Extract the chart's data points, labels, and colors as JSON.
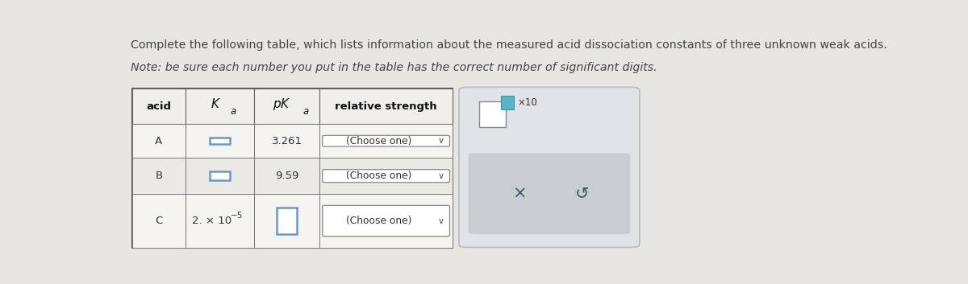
{
  "title_line1": "Complete the following table, which lists information about the measured acid dissociation constants of three unknown weak acids.",
  "title_line2": "Note: be sure each number you put in the table has the correct number of significant digits.",
  "bg_color": "#e8e6e2",
  "rows": [
    {
      "acid": "A",
      "Ka": "",
      "pKa": "3.261",
      "strength": "(Choose one)"
    },
    {
      "acid": "B",
      "Ka": "",
      "pKa": "9.59",
      "strength": "(Choose one)"
    },
    {
      "acid": "C",
      "Ka": "2. × 10",
      "Ka_exp": "-5",
      "pKa": "",
      "strength": "(Choose one)"
    }
  ],
  "table_border": "#555555",
  "cell_border": "#888888",
  "header_bg": "#f0efec",
  "row_bg_even": "#f5f4f0",
  "row_bg_odd": "#ebe9e4",
  "input_box_border": "#6699cc",
  "input_box_fill": "#ffffff",
  "choose_box_border": "#888888",
  "choose_box_fill": "#ffffff",
  "panel_bg": "#e0e4e7",
  "panel_border": "#bbbbbb",
  "panel_bar_bg": "#c8cdd1",
  "teal_box": "#5ab4c8",
  "text_color": "#333333",
  "title_color": "#444444"
}
